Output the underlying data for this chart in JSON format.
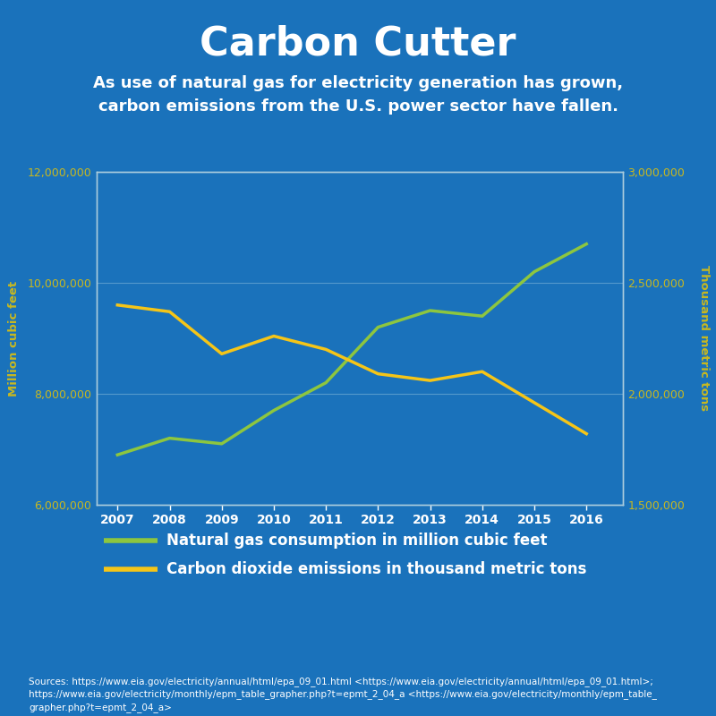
{
  "title": "Carbon Cutter",
  "subtitle": "As use of natural gas for electricity generation has grown,\ncarbon emissions from the U.S. power sector have fallen.",
  "bg_color": "#1a72bb",
  "plot_bg_color": "#1a72bb",
  "title_color": "#ffffff",
  "subtitle_color": "#ffffff",
  "years": [
    2007,
    2008,
    2009,
    2010,
    2011,
    2012,
    2013,
    2014,
    2015,
    2016
  ],
  "natural_gas": [
    6900000,
    7200000,
    7100000,
    7700000,
    8200000,
    9200000,
    9500000,
    9400000,
    10200000,
    10700000
  ],
  "co2_emissions": [
    2400000,
    2370000,
    2180000,
    2260000,
    2200000,
    2090000,
    2060000,
    2100000,
    1960000,
    1820000
  ],
  "left_ylim": [
    6000000,
    12000000
  ],
  "right_ylim": [
    1500000,
    3000000
  ],
  "left_yticks": [
    6000000,
    8000000,
    10000000,
    12000000
  ],
  "right_yticks": [
    1500000,
    2000000,
    2500000,
    3000000
  ],
  "left_ylabel": "Million cubic feet",
  "right_ylabel": "Thousand metric tons",
  "left_axis_color": "#c8b820",
  "right_axis_color": "#c8b820",
  "tick_color": "#ffffff",
  "grid_color": "#5599cc",
  "gas_line_color": "#8dc63f",
  "co2_line_color": "#f5c518",
  "line_width": 2.5,
  "legend_gas": "Natural gas consumption in million cubic feet",
  "legend_co2": "Carbon dioxide emissions in thousand metric tons",
  "legend_text_color": "#ffffff",
  "sources_text": "Sources: https://www.eia.gov/electricity/annual/html/epa_09_01.html <https://www.eia.gov/electricity/annual/html/epa_09_01.html>;\nhttps://www.eia.gov/electricity/monthly/epm_table_grapher.php?t=epmt_2_04_a <https://www.eia.gov/electricity/monthly/epm_table_\ngrapher.php?t=epmt_2_04_a>",
  "sources_color": "#ffffff",
  "spine_color": "#aaccdd",
  "title_fontsize": 32,
  "subtitle_fontsize": 13,
  "tick_fontsize": 10,
  "ytick_fontsize": 9
}
